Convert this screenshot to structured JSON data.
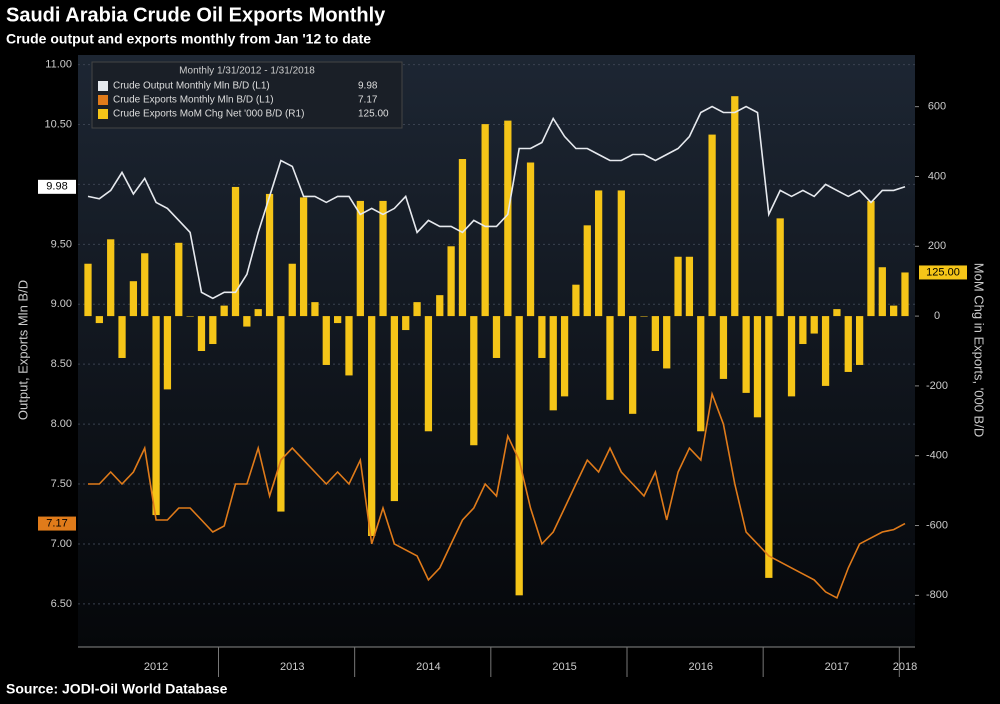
{
  "chart_data": {
    "type": "bar-line",
    "title": "Saudi Arabia Crude Oil Exports Monthly",
    "subtitle": "Crude output and exports monthly from Jan '12 to date",
    "source": "Source: JODI-Oil World Database",
    "legend_title": "Monthly 1/31/2012 - 1/31/2018",
    "y_label": "Output, Exports Mln B/D",
    "y2_label": "MoM Chg in Exports, '000 B/D",
    "categories": [
      null,
      null,
      null,
      null,
      null,
      null,
      "2012",
      null,
      null,
      null,
      null,
      null,
      null,
      null,
      null,
      null,
      null,
      null,
      "2013",
      null,
      null,
      null,
      null,
      null,
      null,
      null,
      null,
      null,
      null,
      null,
      "2014",
      null,
      null,
      null,
      null,
      null,
      null,
      null,
      null,
      null,
      null,
      null,
      "2015",
      null,
      null,
      null,
      null,
      null,
      null,
      null,
      null,
      null,
      null,
      null,
      "2016",
      null,
      null,
      null,
      null,
      null,
      null,
      null,
      null,
      null,
      null,
      null,
      "2017",
      null,
      null,
      null,
      null,
      null,
      "2018"
    ],
    "ylim": [
      6.14,
      11.08
    ],
    "yticks": [
      {
        "value": 6.5,
        "label": "6.50"
      },
      {
        "value": 7,
        "label": "7.00"
      },
      {
        "value": 7.5,
        "label": "7.50"
      },
      {
        "value": 8,
        "label": "8.00"
      },
      {
        "value": 8.5,
        "label": "8.50"
      },
      {
        "value": 9,
        "label": "9.00"
      },
      {
        "value": 9.5,
        "label": "9.50"
      },
      {
        "value": 10,
        "label": "10.00"
      },
      {
        "value": 10.5,
        "label": "10.50"
      },
      {
        "value": 11,
        "label": "11.00"
      }
    ],
    "y2lim": [
      -948,
      748
    ],
    "y2ticks": [
      -800,
      -600,
      -400,
      -200,
      0,
      200,
      400,
      600
    ],
    "grid": true,
    "legend": "upper left",
    "series": [
      {
        "name": "Crude Output Monthly Mln B/D (L1)",
        "type": "line",
        "color": "#e6e9ee",
        "last_label": "9.98",
        "values": [
          9.9,
          9.88,
          9.95,
          10.1,
          9.92,
          10.05,
          9.85,
          9.8,
          9.7,
          9.6,
          9.1,
          9.05,
          9.1,
          9.1,
          9.25,
          9.6,
          9.9,
          10.2,
          10.15,
          9.9,
          9.9,
          9.85,
          9.9,
          9.9,
          9.75,
          9.8,
          9.75,
          9.8,
          9.9,
          9.6,
          9.7,
          9.65,
          9.65,
          9.6,
          9.7,
          9.65,
          9.65,
          9.75,
          10.3,
          10.3,
          10.35,
          10.55,
          10.4,
          10.3,
          10.3,
          10.25,
          10.2,
          10.2,
          10.25,
          10.25,
          10.2,
          10.25,
          10.3,
          10.4,
          10.6,
          10.65,
          10.6,
          10.6,
          10.65,
          10.6,
          9.75,
          9.95,
          9.9,
          9.95,
          9.9,
          10.0,
          9.95,
          9.9,
          9.95,
          9.85,
          9.95,
          9.95,
          9.98
        ]
      },
      {
        "name": "Crude Exports Monthly Mln B/D (L1)",
        "type": "line",
        "color": "#e07b1a",
        "last_label": "7.17",
        "values": [
          7.5,
          7.5,
          7.6,
          7.5,
          7.6,
          7.8,
          7.2,
          7.2,
          7.3,
          7.3,
          7.2,
          7.1,
          7.15,
          7.5,
          7.5,
          7.8,
          7.4,
          7.7,
          7.8,
          7.7,
          7.6,
          7.5,
          7.6,
          7.5,
          7.7,
          7.0,
          7.3,
          7.0,
          6.95,
          6.9,
          6.7,
          6.8,
          7.0,
          7.2,
          7.3,
          7.5,
          7.4,
          7.9,
          7.7,
          7.3,
          7.0,
          7.1,
          7.3,
          7.5,
          7.7,
          7.6,
          7.8,
          7.6,
          7.5,
          7.4,
          7.6,
          7.2,
          7.6,
          7.8,
          7.7,
          8.25,
          8.0,
          7.5,
          7.1,
          7.0,
          6.9,
          6.85,
          6.8,
          6.75,
          6.7,
          6.6,
          6.55,
          6.8,
          7.0,
          7.05,
          7.1,
          7.12,
          7.17
        ]
      },
      {
        "name": "Crude Exports MoM Chg Net '000 B/D (R1)",
        "type": "bar",
        "axis": "y2",
        "color": "#f5c518",
        "last_label": "125.00",
        "values": [
          150,
          -20,
          220,
          -120,
          100,
          180,
          -570,
          -210,
          210,
          0,
          -100,
          -80,
          30,
          370,
          -30,
          20,
          350,
          -560,
          150,
          340,
          40,
          -140,
          -20,
          -170,
          330,
          -630,
          330,
          -530,
          -40,
          40,
          -330,
          60,
          200,
          450,
          -370,
          550,
          -120,
          560,
          -800,
          440,
          -120,
          -270,
          -230,
          90,
          260,
          360,
          -240,
          360,
          -280,
          0,
          -100,
          -150,
          170,
          170,
          -330,
          520,
          -180,
          630,
          -220,
          -290,
          -750,
          280,
          -230,
          -80,
          -50,
          -200,
          20,
          -160,
          -140,
          330,
          140,
          30,
          125
        ]
      }
    ]
  }
}
